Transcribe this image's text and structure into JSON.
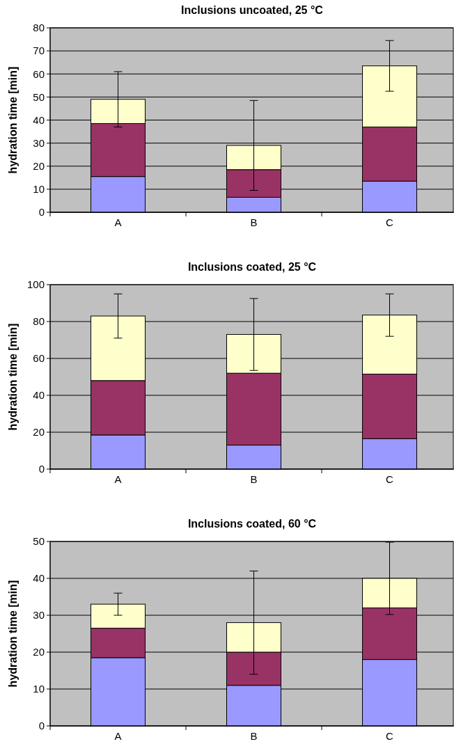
{
  "chart_data": [
    {
      "type": "bar",
      "title": "Inclusions uncoated, 25 °C",
      "ylabel": "hydration time [min]",
      "categories": [
        "A",
        "B",
        "C"
      ],
      "stacked": true,
      "ylim": [
        0,
        80
      ],
      "yticks": [
        0,
        10,
        20,
        30,
        40,
        50,
        60,
        70,
        80
      ],
      "grid": "y",
      "series": [
        {
          "color": "#9999ff",
          "values": [
            15.5,
            6.5,
            13.5
          ]
        },
        {
          "color": "#993366",
          "values": [
            23,
            12,
            23.5
          ]
        },
        {
          "color": "#ffffcc",
          "values": [
            10.5,
            10.5,
            26.5
          ],
          "errors": [
            12,
            19.5,
            11
          ]
        }
      ]
    },
    {
      "type": "bar",
      "title": "Inclusions coated, 25 °C",
      "ylabel": "hydration time [min]",
      "categories": [
        "A",
        "B",
        "C"
      ],
      "stacked": true,
      "ylim": [
        0,
        100
      ],
      "yticks": [
        0,
        20,
        40,
        60,
        80,
        100
      ],
      "grid": "y",
      "series": [
        {
          "color": "#9999ff",
          "values": [
            18.5,
            13,
            16.5
          ]
        },
        {
          "color": "#993366",
          "values": [
            29.5,
            39,
            35
          ]
        },
        {
          "color": "#ffffcc",
          "values": [
            35,
            21,
            32
          ],
          "errors": [
            12,
            19.5,
            11.5
          ]
        }
      ]
    },
    {
      "type": "bar",
      "title": "Inclusions coated, 60 °C",
      "ylabel": "hydration time [min]",
      "categories": [
        "A",
        "B",
        "C"
      ],
      "stacked": true,
      "ylim": [
        0,
        50
      ],
      "yticks": [
        0,
        10,
        20,
        30,
        40,
        50
      ],
      "grid": "y",
      "series": [
        {
          "color": "#9999ff",
          "values": [
            18.5,
            11,
            18
          ]
        },
        {
          "color": "#993366",
          "values": [
            8,
            9,
            14
          ]
        },
        {
          "color": "#ffffcc",
          "values": [
            6.5,
            8,
            8
          ],
          "errors": [
            3,
            14,
            9.8
          ]
        }
      ]
    }
  ]
}
